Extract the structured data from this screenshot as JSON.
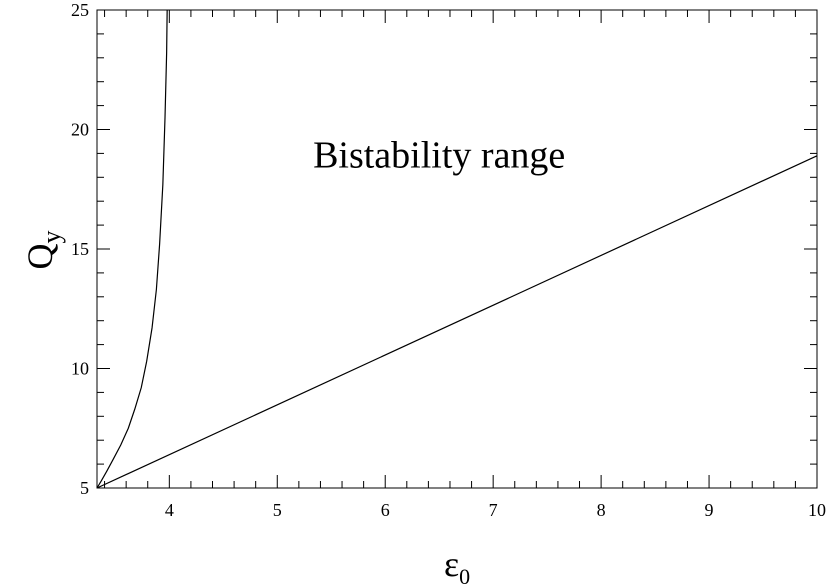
{
  "chart_data": {
    "type": "line",
    "title": "",
    "xlabel": "ε",
    "xlabel_subscript": "0",
    "ylabel": "Q",
    "ylabel_subscript": "y",
    "xlim": [
      3.33,
      10
    ],
    "ylim": [
      5,
      25
    ],
    "x_major_ticks": [
      4,
      5,
      6,
      7,
      8,
      9,
      10
    ],
    "x_tick_labels": [
      "4",
      "5",
      "6",
      "7",
      "8",
      "9",
      "10"
    ],
    "x_minor_step": 0.2,
    "y_major_ticks": [
      5,
      10,
      15,
      20,
      25
    ],
    "y_tick_labels": [
      "5",
      "10",
      "15",
      "20",
      "25"
    ],
    "y_minor_step": 1,
    "grid": false,
    "annotations": [
      {
        "text": "Bistability range",
        "x": 6.5,
        "y": 18.4
      }
    ],
    "series": [
      {
        "x": [
          3.33,
          3.37,
          3.42,
          3.48,
          3.55,
          3.62,
          3.68,
          3.74,
          3.79,
          3.84,
          3.88,
          3.91,
          3.94,
          3.96,
          3.975,
          3.98
        ],
        "y": [
          5.0,
          5.3,
          5.7,
          6.2,
          6.8,
          7.5,
          8.3,
          9.2,
          10.3,
          11.7,
          13.3,
          15.2,
          17.7,
          20.5,
          23.2,
          25.0
        ],
        "color": "#000000"
      },
      {
        "x": [
          3.33,
          10.0
        ],
        "y": [
          5.0,
          18.9
        ],
        "color": "#000000"
      }
    ]
  }
}
